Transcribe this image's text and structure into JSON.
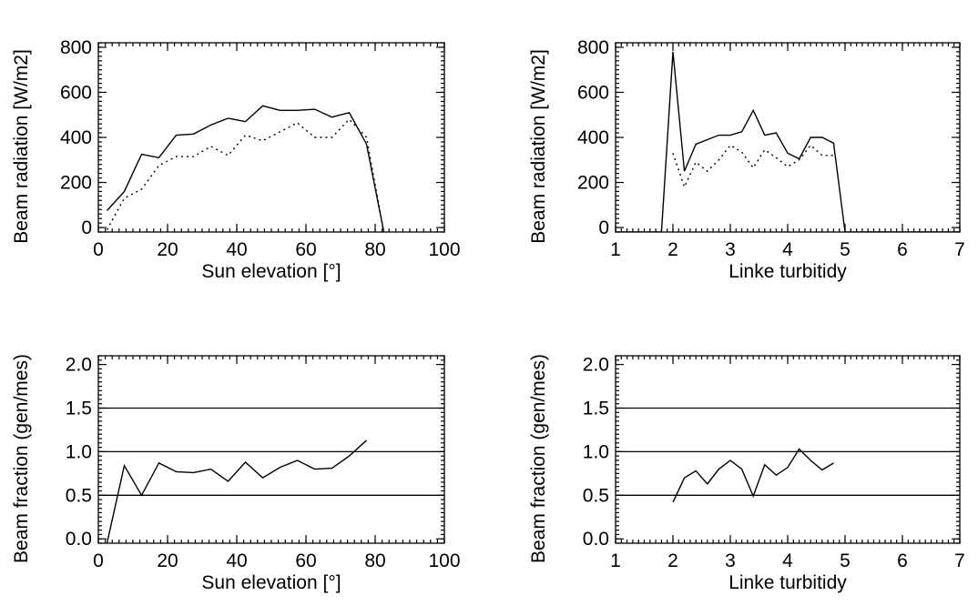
{
  "chart_data": [
    {
      "type": "line",
      "xlabel": "Sun elevation [°]",
      "ylabel": "Beam radiation [W/m2]",
      "xlim": [
        0,
        100
      ],
      "ylim": [
        -20,
        820
      ],
      "xticks": [
        0,
        20,
        40,
        60,
        80,
        100
      ],
      "yticks": [
        0,
        200,
        400,
        600,
        800
      ],
      "xminor": 2,
      "yminor": 20,
      "refs": [],
      "series": [
        {
          "style": "solid",
          "x": [
            2.5,
            7.5,
            12.5,
            17.5,
            22.5,
            27.5,
            32.5,
            37.5,
            42.5,
            47.5,
            52.5,
            57.5,
            62.5,
            67.5,
            72.5,
            77.5,
            82.5
          ],
          "y": [
            75,
            160,
            325,
            310,
            410,
            415,
            455,
            485,
            470,
            540,
            520,
            520,
            525,
            490,
            510,
            370,
            -20
          ]
        },
        {
          "style": "dotted",
          "x": [
            2.5,
            7.5,
            12.5,
            17.5,
            22.5,
            27.5,
            32.5,
            37.5,
            42.5,
            47.5,
            52.5,
            57.5,
            62.5,
            67.5,
            72.5,
            77.5,
            82.5
          ],
          "y": [
            -10,
            130,
            170,
            275,
            315,
            315,
            360,
            320,
            410,
            385,
            425,
            465,
            400,
            400,
            480,
            400,
            -20
          ]
        }
      ]
    },
    {
      "type": "line",
      "xlabel": "Linke turbitidy",
      "ylabel": "Beam radiation [W/m2]",
      "xlim": [
        1,
        7
      ],
      "ylim": [
        -20,
        820
      ],
      "xticks": [
        1,
        2,
        3,
        4,
        5,
        6,
        7
      ],
      "yticks": [
        0,
        200,
        400,
        600,
        800
      ],
      "xminor": 0.1,
      "yminor": 20,
      "refs": [],
      "series": [
        {
          "style": "solid",
          "x": [
            1.0,
            1.8,
            2.0,
            2.2,
            2.4,
            2.6,
            2.8,
            3.0,
            3.2,
            3.4,
            3.6,
            3.8,
            4.0,
            4.2,
            4.4,
            4.6,
            4.8,
            5.0,
            7.0
          ],
          "y": [
            -20,
            -20,
            780,
            250,
            370,
            390,
            410,
            410,
            425,
            520,
            410,
            420,
            330,
            305,
            400,
            400,
            375,
            -20,
            -20
          ]
        },
        {
          "style": "dotted",
          "x": [
            2.0,
            2.2,
            2.4,
            2.6,
            2.8,
            3.0,
            3.2,
            3.4,
            3.6,
            3.8,
            4.0,
            4.2,
            4.4,
            4.6,
            4.8
          ],
          "y": [
            330,
            180,
            290,
            250,
            300,
            365,
            335,
            265,
            345,
            310,
            270,
            300,
            365,
            320,
            320
          ]
        }
      ]
    },
    {
      "type": "line",
      "xlabel": "Sun elevation [°]",
      "ylabel": "Beam fraction (gen/mes)",
      "xlim": [
        0,
        100
      ],
      "ylim": [
        -0.05,
        2.1
      ],
      "xticks": [
        0,
        20,
        40,
        60,
        80,
        100
      ],
      "yticks": [
        0.0,
        0.5,
        1.0,
        1.5,
        2.0
      ],
      "xminor": 2,
      "yminor": 0.05,
      "refs": [
        0.5,
        1.0,
        1.5
      ],
      "series": [
        {
          "style": "solid",
          "x": [
            2.5,
            7.5,
            12.5,
            17.5,
            22.5,
            27.5,
            32.5,
            37.5,
            42.5,
            47.5,
            52.5,
            57.5,
            62.5,
            67.5,
            72.5,
            77.5
          ],
          "y": [
            -0.05,
            0.84,
            0.5,
            0.87,
            0.77,
            0.76,
            0.8,
            0.66,
            0.88,
            0.7,
            0.82,
            0.9,
            0.8,
            0.81,
            0.95,
            1.13
          ]
        }
      ]
    },
    {
      "type": "line",
      "xlabel": "Linke turbitidy",
      "ylabel": "Beam fraction (gen/mes)",
      "xlim": [
        1,
        7
      ],
      "ylim": [
        -0.05,
        2.1
      ],
      "xticks": [
        1,
        2,
        3,
        4,
        5,
        6,
        7
      ],
      "yticks": [
        0.0,
        0.5,
        1.0,
        1.5,
        2.0
      ],
      "xminor": 0.1,
      "yminor": 0.05,
      "refs": [
        0.5,
        1.0,
        1.5
      ],
      "series": [
        {
          "style": "solid",
          "x": [
            2.0,
            2.2,
            2.4,
            2.6,
            2.8,
            3.0,
            3.2,
            3.4,
            3.6,
            3.8,
            4.0,
            4.2,
            4.4,
            4.6,
            4.8
          ],
          "y": [
            0.42,
            0.7,
            0.78,
            0.63,
            0.8,
            0.9,
            0.8,
            0.49,
            0.85,
            0.73,
            0.82,
            1.03,
            0.9,
            0.79,
            0.87
          ]
        }
      ]
    }
  ]
}
